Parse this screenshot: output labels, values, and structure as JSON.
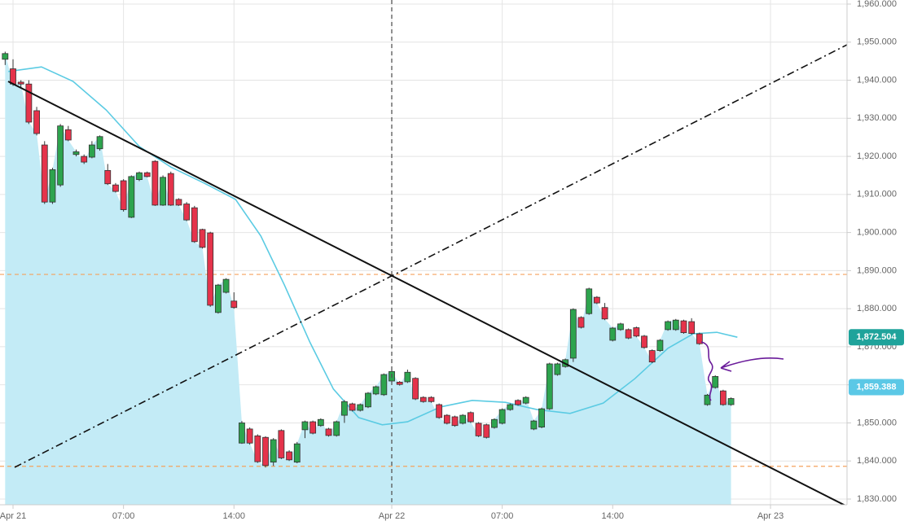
{
  "chart_data": {
    "type": "candlestick",
    "x": [
      -0.5,
      0,
      0.5,
      1,
      1.5,
      2,
      2.5,
      3,
      3.5,
      4,
      4.5,
      5,
      5.5,
      6,
      6.5,
      7,
      7.5,
      8,
      8.5,
      9,
      9.5,
      10,
      10.5,
      11,
      11.5,
      12,
      12.5,
      13,
      13.5,
      14,
      14.5,
      15,
      15.5,
      16,
      16.5,
      17,
      17.5,
      18,
      18.5,
      19,
      19.5,
      20,
      20.5,
      21,
      21.5,
      22,
      22.5,
      23,
      23.5,
      24,
      24.5,
      25,
      25.5,
      26,
      26.5,
      27,
      27.5,
      28,
      28.5,
      29,
      29.5,
      30,
      30.5,
      31,
      31.5,
      32,
      32.5,
      33,
      33.5,
      34,
      34.5,
      35,
      35.5,
      36,
      36.5,
      37,
      37.5,
      38,
      38.5,
      39,
      39.5,
      40,
      40.5,
      41,
      41.5,
      42,
      42.5,
      43,
      43.5,
      44,
      44.5,
      45,
      45.5
    ],
    "open": [
      1945.5,
      1943,
      1939.5,
      1939,
      1932,
      1923,
      1908,
      1912.5,
      1927,
      1920.5,
      1920,
      1919.8,
      1922,
      1916.3,
      1912.5,
      1913.6,
      1904,
      1913.9,
      1915.7,
      1918.7,
      1907.2,
      1915.5,
      1908.7,
      1907.5,
      1906.5,
      1900.8,
      1899.9,
      1879,
      1884.3,
      1882,
      1844.7,
      1848.4,
      1846.6,
      1846.2,
      1839.7,
      1848,
      1842.4,
      1839.7,
      1848.2,
      1850.3,
      1849.3,
      1848.4,
      1846.7,
      1852,
      1855,
      1853.3,
      1854.2,
      1857.6,
      1857.4,
      1861,
      1860.7,
      1860.8,
      1861.7,
      1856.7,
      1856.7,
      1854.8,
      1852,
      1851.6,
      1849.9,
      1852.7,
      1849.9,
      1849.5,
      1848.8,
      1849.9,
      1853.5,
      1855.9,
      1855.2,
      1848.4,
      1848.9,
      1853.7,
      1862.7,
      1864.8,
      1867,
      1877.7,
      1878.7,
      1883,
      1880.3,
      1871.7,
      1874.5,
      1874.5,
      1875,
      1872.8,
      1869,
      1869,
      1874.5,
      1874.5,
      1876.8,
      1876.6,
      1873.4,
      1854.8,
      1859.3,
      1858.4,
      1854.8
    ],
    "high": [
      1947.5,
      1945.5,
      1940,
      1940,
      1933,
      1924,
      1917,
      1928.5,
      1928,
      1921.8,
      1920.5,
      1924,
      1925.5,
      1918,
      1913,
      1914,
      1915,
      1916,
      1916,
      1919,
      1915,
      1916,
      1909,
      1908,
      1907,
      1901,
      1900.2,
      1886.5,
      1888,
      1884.3,
      1850.5,
      1848.8,
      1847,
      1846.5,
      1846,
      1848.3,
      1842.8,
      1845,
      1850.6,
      1850.6,
      1851.2,
      1848.7,
      1850.6,
      1856,
      1855.3,
      1855.1,
      1858.1,
      1859.8,
      1863,
      1863.8,
      1861,
      1864,
      1862,
      1857,
      1857,
      1855.1,
      1852.3,
      1851.9,
      1852.3,
      1853,
      1850.2,
      1849.8,
      1851.2,
      1853.8,
      1855.1,
      1856.2,
      1857,
      1850.8,
      1854,
      1865.8,
      1865.8,
      1866.9,
      1880.1,
      1878,
      1885.5,
      1883.3,
      1881.5,
      1875.2,
      1876.3,
      1874.8,
      1875.3,
      1873.1,
      1869.3,
      1872,
      1876.9,
      1877.3,
      1877.1,
      1877.5,
      1873.7,
      1857.6,
      1862.5,
      1858.7,
      1856.7
    ],
    "low": [
      1944,
      1938.5,
      1938,
      1928.5,
      1925.5,
      1907.5,
      1907.5,
      1912,
      1924,
      1920,
      1918,
      1919.5,
      1921.5,
      1912.5,
      1910.5,
      1905.5,
      1903.8,
      1913.5,
      1914.5,
      1907,
      1907,
      1907,
      1907,
      1903,
      1897.3,
      1895.8,
      1880.5,
      1878.7,
      1884,
      1880,
      1844.5,
      1844.3,
      1839.5,
      1838.3,
      1838.7,
      1840.5,
      1840,
      1839.4,
      1846,
      1847,
      1849,
      1846.4,
      1846.4,
      1850,
      1853,
      1853,
      1853.9,
      1857.3,
      1857.1,
      1860.7,
      1859.8,
      1860.5,
      1856,
      1855.3,
      1855.3,
      1851.1,
      1849.6,
      1849,
      1849.6,
      1850,
      1846.3,
      1845.9,
      1848.5,
      1849.6,
      1853.2,
      1854.5,
      1854.9,
      1848.1,
      1848.6,
      1853.4,
      1862.4,
      1864.5,
      1866,
      1874.8,
      1878.4,
      1881.2,
      1877,
      1871.4,
      1874.2,
      1872,
      1872.5,
      1869.5,
      1865.7,
      1868.7,
      1874.2,
      1874.2,
      1873.4,
      1873.2,
      1870.5,
      1854.5,
      1859,
      1854.5,
      1854.5
    ],
    "close": [
      1947,
      1939,
      1939,
      1929,
      1926,
      1908,
      1916.5,
      1928,
      1924.3,
      1921.2,
      1918.5,
      1923,
      1925.2,
      1912.8,
      1910.8,
      1906,
      1914.7,
      1915.7,
      1914.7,
      1907.2,
      1914.5,
      1907.2,
      1907.2,
      1903.3,
      1897.6,
      1896.1,
      1880.9,
      1886.2,
      1887.7,
      1880.3,
      1850,
      1844.7,
      1839.8,
      1838.8,
      1845.6,
      1840.8,
      1840.3,
      1844.5,
      1850.3,
      1847.3,
      1850.9,
      1846.7,
      1850.3,
      1855.6,
      1853.3,
      1854.8,
      1857.8,
      1859.5,
      1862.7,
      1863.5,
      1860.1,
      1863.3,
      1856.3,
      1855.6,
      1855.6,
      1851.4,
      1849.9,
      1849.3,
      1852,
      1850.3,
      1846.6,
      1846.2,
      1850.9,
      1853.5,
      1854.8,
      1854.8,
      1856.7,
      1850.5,
      1853.7,
      1865.5,
      1865.5,
      1866.6,
      1879.8,
      1875.1,
      1885.2,
      1881.5,
      1877.3,
      1874.9,
      1876,
      1872.3,
      1872.8,
      1869.8,
      1866,
      1871.7,
      1876.6,
      1877,
      1873.7,
      1873.5,
      1870.8,
      1857.3,
      1862.2,
      1854.8,
      1856.4
    ],
    "up_color": "#2da44e",
    "down_color": "#e5334b",
    "area_color": "#c3ebf6",
    "moving_average": {
      "color": "#5bcbe3",
      "x": [
        -0.3,
        1.8,
        3.8,
        5.9,
        8.0,
        10.0,
        12.1,
        14.1,
        15.7,
        17.2,
        18.8,
        20.3,
        21.9,
        23.4,
        25.0,
        27.1,
        29.1,
        31.2,
        33.2,
        35.3,
        37.4,
        39.4,
        41.5,
        43.1,
        44.6,
        45.9
      ],
      "values": [
        1942.3,
        1943.5,
        1939.7,
        1932.2,
        1922.6,
        1917.2,
        1913.0,
        1908.7,
        1899.1,
        1886.2,
        1871.3,
        1858.9,
        1851.4,
        1849.5,
        1850.3,
        1854.2,
        1855.9,
        1855.4,
        1853.5,
        1852.5,
        1855.2,
        1861.6,
        1869.6,
        1873.4,
        1873.8,
        1872.504
      ]
    },
    "hlines": [
      1889.0,
      1838.6
    ],
    "hline_color": "#f5a25d",
    "price_labels": [
      {
        "value": 1872.504,
        "label": "1,872.504",
        "color": "#1fa39b"
      },
      {
        "value": 1859.388,
        "label": "1,859.388",
        "color": "#5bc8e6"
      }
    ],
    "xlim": [
      -0.826,
      52.85
    ],
    "ylim": [
      1828.5,
      1961.07
    ],
    "xticks": [
      {
        "value": 0,
        "label": "Apr 21"
      },
      {
        "value": 7,
        "label": "07:00"
      },
      {
        "value": 14,
        "label": "14:00"
      },
      {
        "value": 24,
        "label": "Apr 22"
      },
      {
        "value": 31,
        "label": "07:00"
      },
      {
        "value": 38,
        "label": "14:00"
      },
      {
        "value": 48,
        "label": "Apr 23"
      }
    ],
    "yticks": [
      {
        "value": 1830,
        "label": "1,830.000"
      },
      {
        "value": 1840,
        "label": "1,840.000"
      },
      {
        "value": 1850,
        "label": "1,850.000"
      },
      {
        "value": 1860,
        "label": "1,860.000"
      },
      {
        "value": 1870,
        "label": "1,870.000"
      },
      {
        "value": 1880,
        "label": "1,880.000"
      },
      {
        "value": 1890,
        "label": "1,890.000"
      },
      {
        "value": 1900,
        "label": "1,900.000"
      },
      {
        "value": 1910,
        "label": "1,910.000"
      },
      {
        "value": 1920,
        "label": "1,920.000"
      },
      {
        "value": 1930,
        "label": "1,930.000"
      },
      {
        "value": 1940,
        "label": "1,940.000"
      },
      {
        "value": 1950,
        "label": "1,950.000"
      },
      {
        "value": 1960,
        "label": "1,960.000"
      }
    ],
    "grid": true
  }
}
